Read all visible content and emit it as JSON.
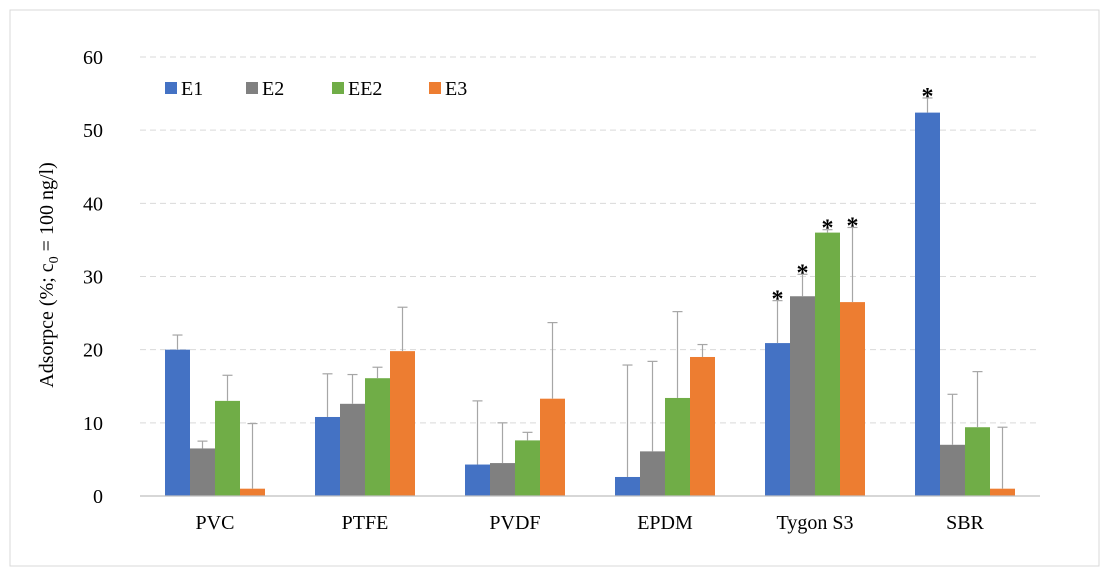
{
  "chart_data": {
    "type": "bar",
    "ylabel_parts": {
      "main": "Adsorpce (%; c",
      "sub": "0",
      "rest": " = 100 ng/l)"
    },
    "xlabel": "",
    "ylim": [
      0,
      60
    ],
    "yticks": [
      0,
      10,
      20,
      30,
      40,
      50,
      60
    ],
    "grid": "horizontal-dashed",
    "legend": "top-left",
    "categories": [
      "PVC",
      "PTFE",
      "PVDF",
      "EPDM",
      "Tygon S3",
      "SBR"
    ],
    "series": [
      {
        "name": "E1",
        "color": "#4472C4",
        "values": [
          20.0,
          10.8,
          4.3,
          2.6,
          20.9,
          52.4
        ],
        "errors": [
          2.0,
          5.9,
          8.7,
          15.3,
          5.8,
          2.0
        ],
        "significant": [
          false,
          false,
          false,
          false,
          true,
          true
        ]
      },
      {
        "name": "E2",
        "color": "#808080",
        "values": [
          6.5,
          12.6,
          4.5,
          6.1,
          27.3,
          7.0
        ],
        "errors": [
          1.0,
          4.0,
          5.5,
          12.3,
          3.0,
          6.9
        ],
        "significant": [
          false,
          false,
          false,
          false,
          true,
          false
        ]
      },
      {
        "name": "EE2",
        "color": "#70AD47",
        "values": [
          13.0,
          16.1,
          7.6,
          13.4,
          36.0,
          9.4
        ],
        "errors": [
          3.5,
          1.5,
          1.1,
          11.8,
          0.4,
          7.6
        ],
        "significant": [
          false,
          false,
          false,
          false,
          true,
          false
        ]
      },
      {
        "name": "E3",
        "color": "#ED7D31",
        "values": [
          1.0,
          19.8,
          13.3,
          19.0,
          26.5,
          1.0
        ],
        "errors": [
          8.9,
          6.0,
          10.4,
          1.7,
          10.2,
          8.4
        ],
        "significant": [
          false,
          false,
          false,
          false,
          true,
          false
        ]
      }
    ],
    "significance_marker": "*"
  }
}
